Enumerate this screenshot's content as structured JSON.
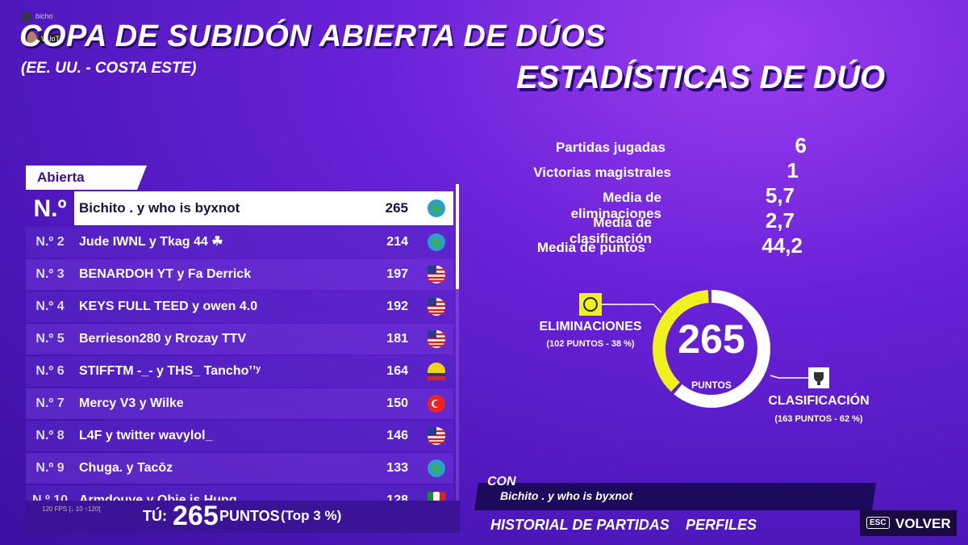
{
  "header": {
    "user": "bicho",
    "tag": "VNoT",
    "title": "COPA DE SUBIDÓN ABIERTA DE DÚOS",
    "subtitle": "(EE. UU. - COSTA ESTE)"
  },
  "leaderboard": {
    "tab": "Abierta",
    "rows": [
      [
        "N.º",
        "Bichito . y who is byxnot",
        265
      ],
      [
        "N.º 2",
        "Jude IWNL y Tkag 44 ☘",
        214
      ],
      [
        "N.º 3",
        "BENARDOH YT y Fa Derrick",
        197
      ],
      [
        "N.º 4",
        "KEYS FULL TEED y owen 4.0",
        192
      ],
      [
        "N.º 5",
        "Berrieson280 y Rrozay TTV",
        181
      ],
      [
        "N.º 6",
        "STIFFTM -_- y THS_ Tanchoʼʼʸ",
        164
      ],
      [
        "N.º 7",
        "Mercy V3 y Wilke",
        150
      ],
      [
        "N.º 8",
        "L4F y twitter wavylol_",
        146
      ],
      [
        "N.º 9",
        "Chuga. y Tacōz",
        133
      ],
      [
        "N.º 10",
        "Armdouve y Obie is Hung",
        128
      ]
    ],
    "fps": "120 FPS [↓ 10 ↑120]",
    "you": {
      "label": "TÚ:",
      "points": 265,
      "unit": "PUNTOS",
      "top": "(Top 3 %)"
    }
  },
  "stats": {
    "title": "ESTADÍSTICAS DE DÚO",
    "rows": [
      [
        "Partidas jugadas",
        "6"
      ],
      [
        "Victorias magistrales",
        "1"
      ],
      [
        "Media de eliminaciones",
        "5,7"
      ],
      [
        "Media de clasificación",
        "2,7"
      ],
      [
        "Media de puntos",
        "44,2"
      ]
    ]
  },
  "donut": {
    "total": 265,
    "unit": "PUNTOS",
    "eliminations": {
      "label": "ELIMINACIONES",
      "detail": "(102 PUNTOS - 38 %)",
      "share": 38
    },
    "placement": {
      "label": "CLASIFICACIÓN",
      "detail": "(163 PUNTOS - 62 %)",
      "share": 62
    }
  },
  "partner": {
    "label": "CON",
    "name": "Bichito . y who is byxnot"
  },
  "menu": {
    "history": "HISTORIAL DE PARTIDAS",
    "profiles": "PERFILES",
    "key": "ESC",
    "back": "VOLVER"
  }
}
